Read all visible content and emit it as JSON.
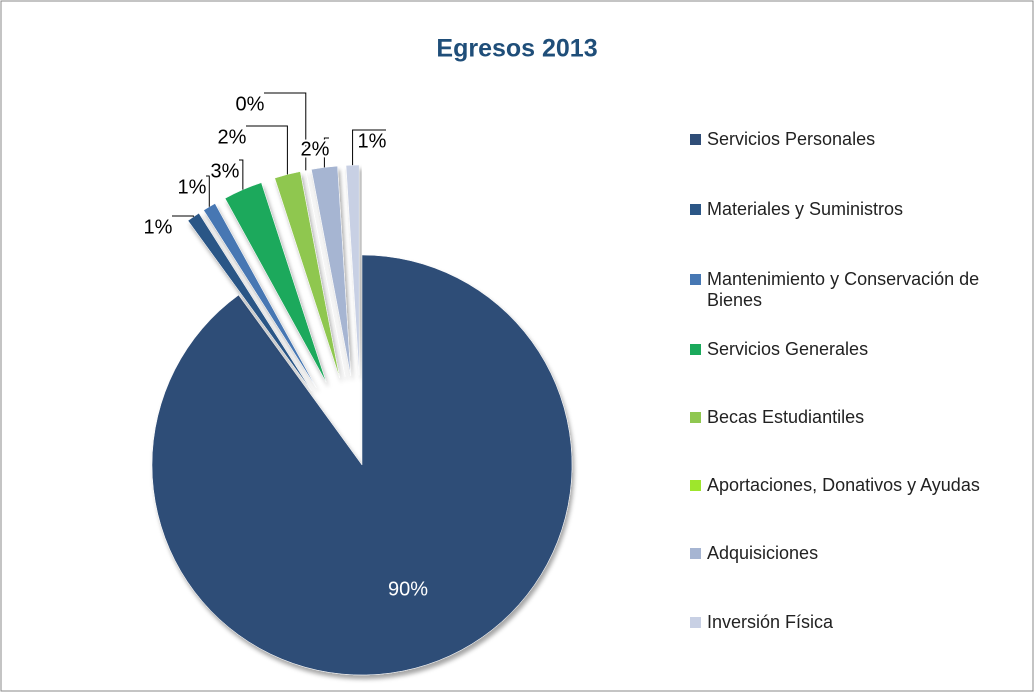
{
  "chart_data": {
    "type": "pie",
    "title": "Egresos 2013",
    "categories": [
      "Servicios Personales",
      "Materiales y Suministros",
      "Mantenimiento y Conservación de Bienes",
      "Servicios Generales",
      "Becas Estudiantiles",
      "Aportaciones, Donativos y Ayudas",
      "Adquisiciones",
      "Inversión Física"
    ],
    "values": [
      90,
      1,
      1,
      3,
      2,
      0,
      2,
      1
    ],
    "value_labels": [
      "90%",
      "1%",
      "1%",
      "3%",
      "2%",
      "0%",
      "2%",
      "1%"
    ],
    "colors": [
      "#2f4d77",
      "#2b5686",
      "#4677b3",
      "#1aa95b",
      "#8fc750",
      "#9ee62c",
      "#a6b5d2",
      "#c8d0e4"
    ],
    "legend": "right"
  }
}
